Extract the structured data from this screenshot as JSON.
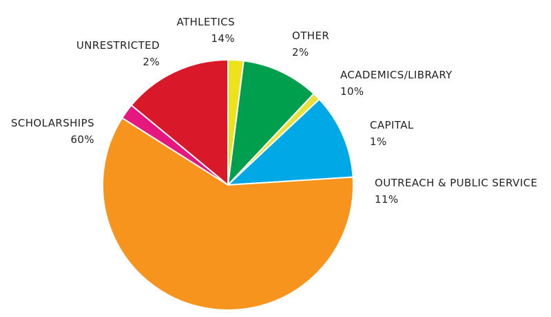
{
  "chart_data": {
    "type": "pie",
    "title": "",
    "start": "top",
    "direction": "clockwise",
    "slices": [
      {
        "label": "OTHER",
        "percent_label": "2%",
        "value": 2,
        "color": "#EEE21C"
      },
      {
        "label": "ACADEMICS/LIBRARY",
        "percent_label": "10%",
        "value": 10,
        "color": "#009F4D"
      },
      {
        "label": "CAPITAL",
        "percent_label": "1%",
        "value": 1,
        "color": "#E7E13A"
      },
      {
        "label": "OUTREACH & PUBLIC SERVICE",
        "percent_label": "11%",
        "value": 11,
        "color": "#00A9E6"
      },
      {
        "label": "SCHOLARSHIPS",
        "percent_label": "60%",
        "value": 60,
        "color": "#F7941D"
      },
      {
        "label": "UNRESTRICTED",
        "percent_label": "2%",
        "value": 2,
        "color": "#E6177E"
      },
      {
        "label": "ATHLETICS",
        "percent_label": "14%",
        "value": 14,
        "color": "#D9192A"
      }
    ]
  }
}
